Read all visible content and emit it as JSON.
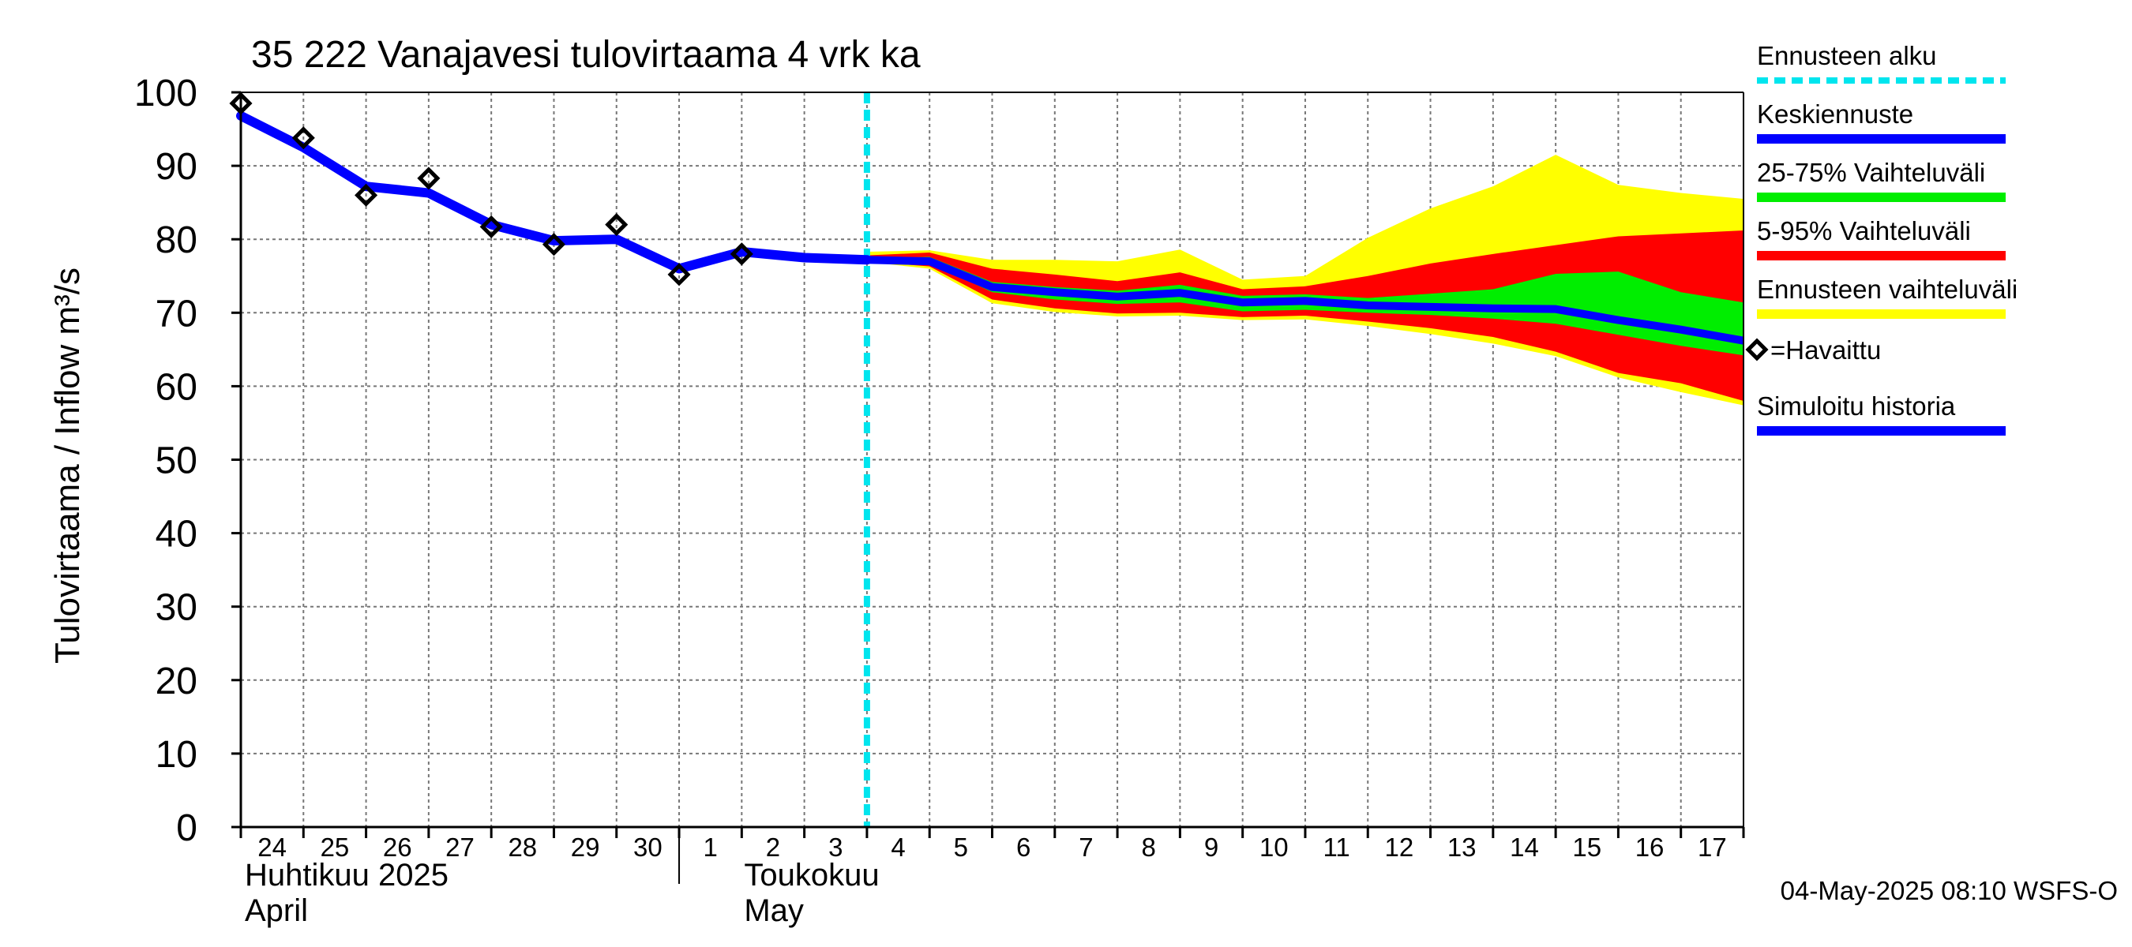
{
  "chart_data": {
    "type": "line",
    "title": "35 222 Vanajavesi tulovirtaama 4 vrk ka",
    "ylabel": "Tulovirtaama / Inflow    m³/s",
    "ylim": [
      0,
      100
    ],
    "yticks": [
      0,
      10,
      20,
      30,
      40,
      50,
      60,
      70,
      80,
      90,
      100
    ],
    "x_start": "2025-04-24",
    "x_end": "2025-05-18",
    "x_tick_labels": [
      "24",
      "25",
      "26",
      "27",
      "28",
      "29",
      "30",
      "1",
      "2",
      "3",
      "4",
      "5",
      "6",
      "7",
      "8",
      "9",
      "10",
      "11",
      "12",
      "13",
      "14",
      "15",
      "16",
      "17"
    ],
    "month_labels": [
      {
        "line1": "Huhtikuu  2025",
        "line2": "April"
      },
      {
        "line1": "Toukokuu",
        "line2": "May"
      }
    ],
    "grid": true,
    "legend_position": "right",
    "forecast_start": "2025-05-04",
    "legend": [
      {
        "label": "Ennusteen alku",
        "color": "#00e5ee",
        "style": "dashed"
      },
      {
        "label": "Keskiennuste",
        "color": "#0000ff",
        "style": "line"
      },
      {
        "label": "25-75% Vaihteluväli",
        "color": "#00ee00",
        "style": "line"
      },
      {
        "label": "5-95% Vaihteluväli",
        "color": "#ff0000",
        "style": "line"
      },
      {
        "label": "Ennusteen vaihteluväli",
        "color": "#ffff00",
        "style": "line"
      },
      {
        "label": "=Havaittu",
        "color": "#000000",
        "style": "diamond"
      },
      {
        "label": "Simuloitu historia",
        "color": "#0000ff",
        "style": "line"
      }
    ],
    "observed": {
      "x": [
        "2025-04-24",
        "2025-04-25",
        "2025-04-26",
        "2025-04-27",
        "2025-04-28",
        "2025-04-29",
        "2025-04-30",
        "2025-05-01",
        "2025-05-02"
      ],
      "y": [
        98.5,
        93.8,
        86.0,
        88.3,
        81.7,
        79.3,
        82.0,
        75.2,
        78.0
      ]
    },
    "simulated_history": {
      "x": [
        "2025-04-24",
        "2025-04-25",
        "2025-04-26",
        "2025-04-27",
        "2025-04-28",
        "2025-04-29",
        "2025-04-30",
        "2025-05-01",
        "2025-05-02",
        "2025-05-03",
        "2025-05-04"
      ],
      "y": [
        96.8,
        92.5,
        87.2,
        86.3,
        82.0,
        79.8,
        80.0,
        76.0,
        78.3,
        77.5,
        77.2
      ]
    },
    "forecast": {
      "x": [
        "2025-05-04",
        "2025-05-05",
        "2025-05-06",
        "2025-05-07",
        "2025-05-08",
        "2025-05-09",
        "2025-05-10",
        "2025-05-11",
        "2025-05-12",
        "2025-05-13",
        "2025-05-14",
        "2025-05-15",
        "2025-05-16",
        "2025-05-17",
        "2025-05-18"
      ],
      "median": [
        77.2,
        77.0,
        73.5,
        72.8,
        72.2,
        72.7,
        71.4,
        71.6,
        71.0,
        70.8,
        70.6,
        70.5,
        69.0,
        67.7,
        66.2
      ],
      "p25": [
        77.1,
        76.8,
        72.8,
        71.8,
        71.2,
        71.4,
        70.2,
        70.4,
        70.0,
        69.7,
        69.2,
        68.5,
        67.0,
        65.5,
        64.2
      ],
      "p75": [
        77.4,
        77.6,
        74.2,
        73.5,
        73.0,
        73.8,
        72.3,
        72.5,
        72.0,
        72.6,
        73.2,
        75.3,
        75.6,
        72.8,
        71.4
      ],
      "p5": [
        77.0,
        76.3,
        71.8,
        70.6,
        69.9,
        70.0,
        69.4,
        69.6,
        68.8,
        67.9,
        66.7,
        64.7,
        61.8,
        60.4,
        58.0
      ],
      "p95": [
        77.8,
        78.2,
        76.0,
        75.2,
        74.3,
        75.5,
        73.2,
        73.6,
        75.0,
        76.7,
        78.0,
        79.2,
        80.4,
        80.8,
        81.2
      ],
      "min": [
        76.9,
        76.0,
        71.3,
        70.1,
        69.5,
        69.6,
        69.0,
        69.1,
        68.2,
        67.1,
        65.8,
        64.1,
        61.2,
        59.2,
        57.4
      ],
      "max": [
        78.3,
        78.5,
        77.2,
        77.2,
        77.0,
        78.6,
        74.5,
        75.0,
        80.2,
        84.2,
        87.2,
        91.5,
        87.4,
        86.3,
        85.5
      ]
    },
    "footer": "04-May-2025 08:10 WSFS-O"
  }
}
